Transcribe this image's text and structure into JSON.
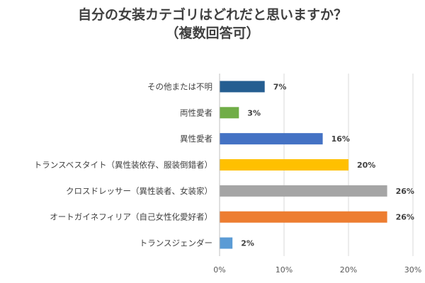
{
  "chart_data": {
    "type": "bar",
    "orientation": "horizontal",
    "title_line1": "自分の女装カテゴリはどれだと思いますか？",
    "title_line2": "（複数回答可）",
    "categories": [
      "その他または不明",
      "両性愛者",
      "異性愛者",
      "トランスベスタイト（異性装依存、服装倒錯者）",
      "クロスドレッサー（異性装者、女装家）",
      "オートガイネフィリア（自己女性化愛好者）",
      "トランスジェンダー"
    ],
    "values": [
      7,
      3,
      16,
      20,
      26,
      26,
      2
    ],
    "value_labels": [
      "7%",
      "3%",
      "16%",
      "20%",
      "26%",
      "26%",
      "2%"
    ],
    "colors": [
      "#255e91",
      "#70ad47",
      "#4472c4",
      "#ffc000",
      "#a5a5a5",
      "#ed7d31",
      "#5b9bd5"
    ],
    "xlim": [
      0,
      30
    ],
    "xticks": [
      0,
      10,
      20,
      30
    ],
    "xtick_labels": [
      "0%",
      "10%",
      "20%",
      "30%"
    ],
    "grid": true,
    "legend": "none"
  }
}
